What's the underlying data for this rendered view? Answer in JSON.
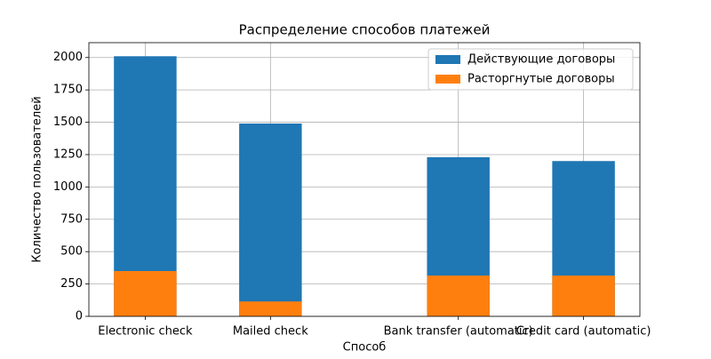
{
  "chart_data": {
    "type": "bar",
    "title": "Распределение способов платежей",
    "x_label": "Способ",
    "y_label": "Количество пользователей",
    "x": [
      0,
      1,
      2.5,
      3.5
    ],
    "xticks": [
      {
        "value": 0,
        "label": "Electronic check"
      },
      {
        "value": 1,
        "label": "Mailed check"
      },
      {
        "value": 2.5,
        "label": "Bank transfer (automatic)"
      },
      {
        "value": 3.5,
        "label": "Credit card (automatic)"
      }
    ],
    "xlim": [
      -0.45,
      3.95
    ],
    "series": [
      {
        "name": "Действующие договоры",
        "color": "#1f77b4",
        "values": [
          2010,
          1490,
          1230,
          1200
        ]
      },
      {
        "name": "Расторгнутые договоры",
        "color": "#ff7f0e",
        "values": [
          350,
          115,
          315,
          315
        ]
      }
    ],
    "ylim": [
      0,
      2115
    ],
    "yticks": [
      0,
      250,
      500,
      750,
      1000,
      1250,
      1500,
      1750,
      2000
    ],
    "grid": true,
    "legend": "upper-right"
  }
}
